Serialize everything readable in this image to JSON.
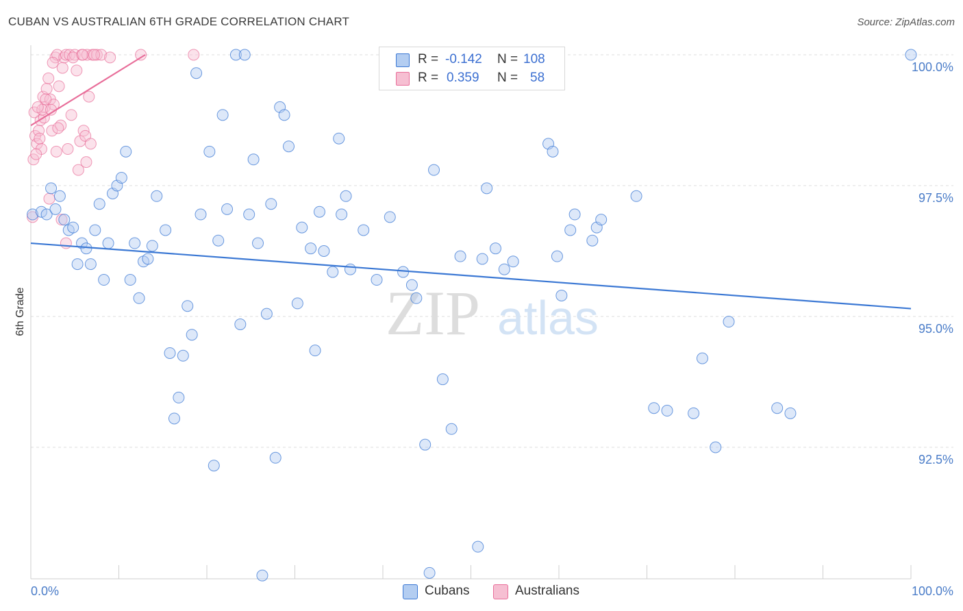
{
  "title": "CUBAN VS AUSTRALIAN 6TH GRADE CORRELATION CHART",
  "source": "Source: ZipAtlas.com",
  "watermark": {
    "zip": "ZIP",
    "atlas": "atlas"
  },
  "colors": {
    "cubans": "#3b78d4",
    "cubans_fill": "#b3cdf1",
    "australians": "#e86d99",
    "australians_fill": "#f6bfd2",
    "tick": "#4a7cc8"
  },
  "legend": {
    "rows": [
      {
        "r_label": "R =",
        "r_value": "-0.142",
        "n_label": "N =",
        "n_value": "108"
      },
      {
        "r_label": "R =",
        "r_value": "0.359",
        "n_label": "N =",
        "n_value": "58"
      }
    ]
  },
  "bottom_legend": {
    "cubans": "Cubans",
    "australians": "Australians"
  },
  "chart_data": {
    "type": "scatter",
    "xlabel": "",
    "ylabel": "6th Grade",
    "xlim": [
      0,
      100
    ],
    "ylim": [
      90.0,
      100.25
    ],
    "x_tick_labels": [
      "0.0%",
      "100.0%"
    ],
    "y_ticks": [
      92.5,
      95.0,
      97.5,
      100.0
    ],
    "y_tick_labels": [
      "92.5%",
      "95.0%",
      "97.5%",
      "100.0%"
    ],
    "grid": true,
    "series": [
      {
        "name": "Cubans",
        "trend": {
          "x": [
            0,
            100
          ],
          "y": [
            96.4,
            95.15
          ]
        },
        "points": [
          [
            0.2,
            96.95
          ],
          [
            1.2,
            97.0
          ],
          [
            1.8,
            96.95
          ],
          [
            2.3,
            97.45
          ],
          [
            2.8,
            97.05
          ],
          [
            3.3,
            97.3
          ],
          [
            3.8,
            96.85
          ],
          [
            4.3,
            96.65
          ],
          [
            4.8,
            96.7
          ],
          [
            5.3,
            96.0
          ],
          [
            5.8,
            96.4
          ],
          [
            6.3,
            96.3
          ],
          [
            6.8,
            96.0
          ],
          [
            7.3,
            96.65
          ],
          [
            7.8,
            97.15
          ],
          [
            8.3,
            95.7
          ],
          [
            8.8,
            96.4
          ],
          [
            9.3,
            97.35
          ],
          [
            9.8,
            97.5
          ],
          [
            10.3,
            97.65
          ],
          [
            10.8,
            98.15
          ],
          [
            11.3,
            95.7
          ],
          [
            11.8,
            96.4
          ],
          [
            12.3,
            95.35
          ],
          [
            12.8,
            96.05
          ],
          [
            13.3,
            96.1
          ],
          [
            13.8,
            96.35
          ],
          [
            14.3,
            97.3
          ],
          [
            15.3,
            96.65
          ],
          [
            15.8,
            94.3
          ],
          [
            16.3,
            93.05
          ],
          [
            16.8,
            93.45
          ],
          [
            17.3,
            94.25
          ],
          [
            18.3,
            94.65
          ],
          [
            18.8,
            99.65
          ],
          [
            19.3,
            96.95
          ],
          [
            20.3,
            98.15
          ],
          [
            20.8,
            92.15
          ],
          [
            21.3,
            96.45
          ],
          [
            21.8,
            98.85
          ],
          [
            22.3,
            97.05
          ],
          [
            23.3,
            100.0
          ],
          [
            24.3,
            100.0
          ],
          [
            23.8,
            94.85
          ],
          [
            24.8,
            96.95
          ],
          [
            25.3,
            98.0
          ],
          [
            25.8,
            96.4
          ],
          [
            26.8,
            95.05
          ],
          [
            27.3,
            97.15
          ],
          [
            27.8,
            92.3
          ],
          [
            28.3,
            99.0
          ],
          [
            28.8,
            98.85
          ],
          [
            29.3,
            98.25
          ],
          [
            30.3,
            95.25
          ],
          [
            30.8,
            96.7
          ],
          [
            31.8,
            96.3
          ],
          [
            32.3,
            94.35
          ],
          [
            32.8,
            97.0
          ],
          [
            33.3,
            96.25
          ],
          [
            34.3,
            95.85
          ],
          [
            35.0,
            98.4
          ],
          [
            35.3,
            96.95
          ],
          [
            35.8,
            97.3
          ],
          [
            36.3,
            95.9
          ],
          [
            37.8,
            96.65
          ],
          [
            39.3,
            95.7
          ],
          [
            40.8,
            96.9
          ],
          [
            42.3,
            95.85
          ],
          [
            43.3,
            95.6
          ],
          [
            43.8,
            95.35
          ],
          [
            44.8,
            92.55
          ],
          [
            45.8,
            97.8
          ],
          [
            46.8,
            93.8
          ],
          [
            47.8,
            92.85
          ],
          [
            48.8,
            96.15
          ],
          [
            51.3,
            96.1
          ],
          [
            51.8,
            97.45
          ],
          [
            52.8,
            96.3
          ],
          [
            53.8,
            95.9
          ],
          [
            54.8,
            96.05
          ],
          [
            58.8,
            98.3
          ],
          [
            59.3,
            98.15
          ],
          [
            59.8,
            96.15
          ],
          [
            60.3,
            95.4
          ],
          [
            61.3,
            96.65
          ],
          [
            61.8,
            96.95
          ],
          [
            63.8,
            96.45
          ],
          [
            64.3,
            96.7
          ],
          [
            64.8,
            96.85
          ],
          [
            68.8,
            97.3
          ],
          [
            70.8,
            93.25
          ],
          [
            72.3,
            93.2
          ],
          [
            75.3,
            93.15
          ],
          [
            76.3,
            94.2
          ],
          [
            77.8,
            92.5
          ],
          [
            79.3,
            94.9
          ],
          [
            84.8,
            93.25
          ],
          [
            86.3,
            93.15
          ],
          [
            100.0,
            100.0
          ],
          [
            50.8,
            90.6
          ],
          [
            45.3,
            90.1
          ],
          [
            26.3,
            90.05
          ],
          [
            17.8,
            95.2
          ]
        ]
      },
      {
        "name": "Australians",
        "trend": {
          "x": [
            0,
            13
          ],
          "y": [
            98.65,
            100.0
          ]
        },
        "points": [
          [
            0.3,
            98.0
          ],
          [
            0.5,
            98.45
          ],
          [
            0.7,
            98.3
          ],
          [
            0.9,
            98.55
          ],
          [
            1.1,
            98.75
          ],
          [
            1.2,
            98.2
          ],
          [
            1.4,
            99.2
          ],
          [
            1.6,
            99.0
          ],
          [
            1.8,
            99.35
          ],
          [
            2.0,
            99.55
          ],
          [
            2.2,
            99.15
          ],
          [
            2.4,
            98.55
          ],
          [
            2.6,
            99.05
          ],
          [
            2.8,
            99.95
          ],
          [
            3.0,
            100.0
          ],
          [
            3.2,
            99.4
          ],
          [
            3.4,
            98.65
          ],
          [
            3.6,
            99.75
          ],
          [
            3.8,
            99.95
          ],
          [
            4.0,
            100.0
          ],
          [
            4.2,
            98.2
          ],
          [
            4.4,
            100.0
          ],
          [
            4.6,
            98.85
          ],
          [
            5.0,
            100.0
          ],
          [
            5.2,
            99.7
          ],
          [
            5.4,
            97.8
          ],
          [
            5.6,
            98.35
          ],
          [
            5.8,
            100.0
          ],
          [
            6.0,
            98.55
          ],
          [
            6.2,
            98.45
          ],
          [
            6.4,
            100.0
          ],
          [
            6.6,
            99.2
          ],
          [
            6.8,
            98.3
          ],
          [
            7.0,
            100.0
          ],
          [
            7.5,
            100.0
          ],
          [
            8.0,
            100.0
          ],
          [
            9.0,
            99.95
          ],
          [
            12.5,
            100.0
          ],
          [
            18.5,
            100.0
          ],
          [
            0.4,
            98.9
          ],
          [
            0.6,
            98.1
          ],
          [
            1.5,
            98.8
          ],
          [
            2.1,
            97.25
          ],
          [
            3.5,
            96.85
          ],
          [
            4.0,
            96.4
          ],
          [
            0.2,
            96.9
          ],
          [
            6.3,
            97.95
          ],
          [
            1.0,
            98.4
          ],
          [
            1.3,
            98.95
          ],
          [
            2.5,
            99.85
          ],
          [
            3.1,
            98.6
          ],
          [
            4.8,
            99.95
          ],
          [
            5.9,
            100.0
          ],
          [
            7.2,
            100.0
          ],
          [
            0.8,
            99.0
          ],
          [
            2.9,
            98.15
          ],
          [
            1.7,
            99.15
          ],
          [
            2.3,
            98.95
          ]
        ]
      }
    ]
  }
}
